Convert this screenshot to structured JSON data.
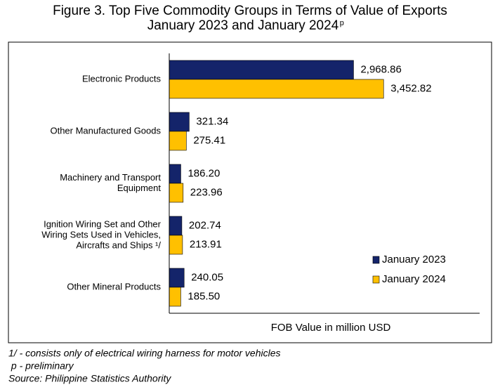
{
  "chart_data": {
    "type": "hbar",
    "title": [
      "Figure 3. Top Five Commodity Groups in Terms of Value of Exports",
      "January 2023 and January 2024"
    ],
    "title_superscript": "p",
    "categories": [
      [
        "Electronic Products"
      ],
      [
        "Other Manufactured Goods"
      ],
      [
        "Machinery and Transport",
        "Equipment"
      ],
      [
        "Ignition Wiring Set and Other",
        "Wiring Sets Used in Vehicles,",
        "Aircrafts and Ships ¹/"
      ],
      [
        "Other Mineral Products"
      ]
    ],
    "series": [
      {
        "name": "January 2023",
        "color": "#14246a",
        "values": [
          2968.86,
          321.34,
          186.2,
          202.74,
          240.05
        ],
        "value_labels": [
          "2,968.86",
          "321.34",
          "186.20",
          "202.74",
          "240.05"
        ]
      },
      {
        "name": "January 2024",
        "color": "#ffc000",
        "values": [
          3452.82,
          275.41,
          223.96,
          213.91,
          185.5
        ],
        "value_labels": [
          "3,452.82",
          "275.41",
          "223.96",
          "213.91",
          "185.50"
        ]
      }
    ],
    "xlabel": "FOB Value in million USD",
    "xlim": [
      0,
      5000
    ],
    "legend": "lower right",
    "footnotes": [
      "1/ - consists only of electrical wiring harness for motor vehicles",
      " p - preliminary",
      "Source: Philippine Statistics Authority"
    ]
  }
}
